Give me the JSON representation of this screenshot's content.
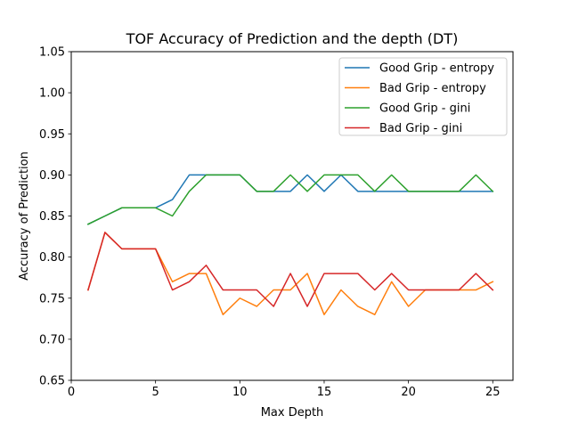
{
  "chart_data": {
    "type": "line",
    "title": "TOF Accuracy of Prediction and the depth (DT)",
    "xlabel": "Max Depth",
    "ylabel": "Accuracy of Prediction",
    "xlim": [
      0,
      26.2
    ],
    "ylim": [
      0.65,
      1.05
    ],
    "xticks": [
      0,
      5,
      10,
      15,
      20,
      25
    ],
    "yticks": [
      0.65,
      0.7,
      0.75,
      0.8,
      0.85,
      0.9,
      0.95,
      1.0,
      1.05
    ],
    "xtick_labels": [
      "0",
      "5",
      "10",
      "15",
      "20",
      "25"
    ],
    "ytick_labels": [
      "0.65",
      "0.70",
      "0.75",
      "0.80",
      "0.85",
      "0.90",
      "0.95",
      "1.00",
      "1.05"
    ],
    "grid": false,
    "legend_position": "top-right",
    "x": [
      1,
      2,
      3,
      4,
      5,
      6,
      7,
      8,
      9,
      10,
      11,
      12,
      13,
      14,
      15,
      16,
      17,
      18,
      19,
      20,
      21,
      22,
      23,
      24,
      25
    ],
    "series": [
      {
        "name": "Good Grip - entropy",
        "color": "#1f77b4",
        "values": [
          0.84,
          0.85,
          0.86,
          0.86,
          0.86,
          0.87,
          0.9,
          0.9,
          0.9,
          0.9,
          0.88,
          0.88,
          0.88,
          0.9,
          0.88,
          0.9,
          0.88,
          0.88,
          0.88,
          0.88,
          0.88,
          0.88,
          0.88,
          0.88,
          0.88
        ]
      },
      {
        "name": "Bad Grip - entropy",
        "color": "#ff7f0e",
        "values": [
          0.76,
          0.83,
          0.81,
          0.81,
          0.81,
          0.77,
          0.78,
          0.78,
          0.73,
          0.75,
          0.74,
          0.76,
          0.76,
          0.78,
          0.73,
          0.76,
          0.74,
          0.73,
          0.77,
          0.74,
          0.76,
          0.76,
          0.76,
          0.76,
          0.77
        ]
      },
      {
        "name": "Good Grip - gini",
        "color": "#2ca02c",
        "values": [
          0.84,
          0.85,
          0.86,
          0.86,
          0.86,
          0.85,
          0.88,
          0.9,
          0.9,
          0.9,
          0.88,
          0.88,
          0.9,
          0.88,
          0.9,
          0.9,
          0.9,
          0.88,
          0.9,
          0.88,
          0.88,
          0.88,
          0.88,
          0.9,
          0.88
        ]
      },
      {
        "name": "Bad Grip - gini",
        "color": "#d62728",
        "values": [
          0.76,
          0.83,
          0.81,
          0.81,
          0.81,
          0.76,
          0.77,
          0.79,
          0.76,
          0.76,
          0.76,
          0.74,
          0.78,
          0.74,
          0.78,
          0.78,
          0.78,
          0.76,
          0.78,
          0.76,
          0.76,
          0.76,
          0.76,
          0.78,
          0.76
        ]
      }
    ]
  }
}
